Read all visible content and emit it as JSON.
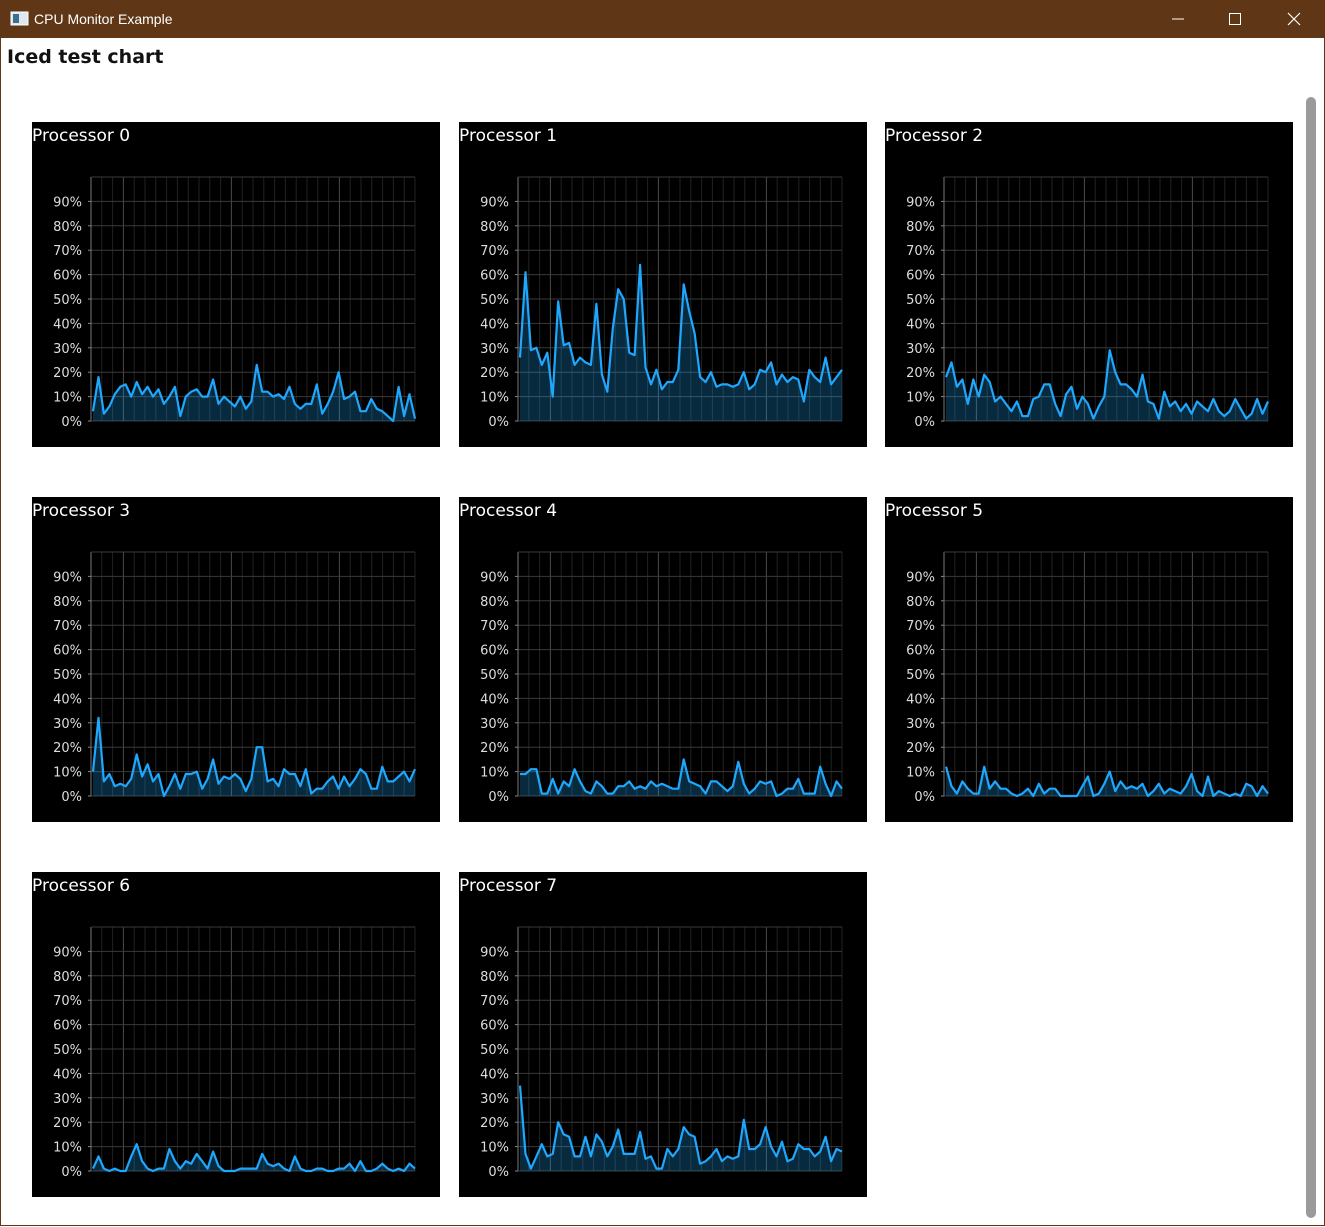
{
  "window": {
    "title": "CPU Monitor Example"
  },
  "header": {
    "title": "Iced test chart"
  },
  "chart_data": [
    {
      "type": "line",
      "title": "Processor 0",
      "color": "#1ea7fd",
      "grid": true,
      "ylim": [
        0,
        100
      ],
      "yticks": [
        {
          "value": 0,
          "label": "0%"
        },
        {
          "value": 10,
          "label": "10%"
        },
        {
          "value": 20,
          "label": "20%"
        },
        {
          "value": 30,
          "label": "30%"
        },
        {
          "value": 40,
          "label": "40%"
        },
        {
          "value": 50,
          "label": "50%"
        },
        {
          "value": 60,
          "label": "60%"
        },
        {
          "value": 70,
          "label": "70%"
        },
        {
          "value": 80,
          "label": "80%"
        },
        {
          "value": 90,
          "label": "90%"
        }
      ],
      "values": [
        4,
        18,
        3,
        6,
        11,
        14,
        15,
        10,
        16,
        11,
        14,
        10,
        13,
        7,
        10,
        14,
        2,
        10,
        12,
        13,
        10,
        10,
        17,
        7,
        10,
        8,
        6,
        10,
        5,
        8,
        23,
        12,
        12,
        10,
        11,
        9,
        14,
        7,
        5,
        7,
        7,
        15,
        3,
        7,
        12,
        20,
        9,
        10,
        12,
        4,
        4,
        9,
        5,
        4,
        2,
        0,
        14,
        2,
        11,
        1
      ]
    },
    {
      "type": "line",
      "title": "Processor 1",
      "color": "#1ea7fd",
      "grid": true,
      "ylim": [
        0,
        100
      ],
      "yticks": [
        {
          "value": 0,
          "label": "0%"
        },
        {
          "value": 10,
          "label": "10%"
        },
        {
          "value": 20,
          "label": "20%"
        },
        {
          "value": 30,
          "label": "30%"
        },
        {
          "value": 40,
          "label": "40%"
        },
        {
          "value": 50,
          "label": "50%"
        },
        {
          "value": 60,
          "label": "60%"
        },
        {
          "value": 70,
          "label": "70%"
        },
        {
          "value": 80,
          "label": "80%"
        },
        {
          "value": 90,
          "label": "90%"
        }
      ],
      "values": [
        26,
        61,
        29,
        30,
        23,
        28,
        10,
        49,
        31,
        32,
        23,
        26,
        24,
        23,
        48,
        19,
        12,
        38,
        54,
        50,
        28,
        27,
        64,
        22,
        15,
        21,
        13,
        16,
        16,
        21,
        56,
        45,
        36,
        18,
        16,
        20,
        14,
        15,
        15,
        14,
        15,
        20,
        13,
        15,
        21,
        20,
        24,
        15,
        19,
        16,
        18,
        17,
        8,
        21,
        18,
        16,
        26,
        15,
        18,
        21
      ]
    },
    {
      "type": "line",
      "title": "Processor 2",
      "color": "#1ea7fd",
      "grid": true,
      "ylim": [
        0,
        100
      ],
      "yticks": [
        {
          "value": 0,
          "label": "0%"
        },
        {
          "value": 10,
          "label": "10%"
        },
        {
          "value": 20,
          "label": "20%"
        },
        {
          "value": 30,
          "label": "30%"
        },
        {
          "value": 40,
          "label": "40%"
        },
        {
          "value": 50,
          "label": "50%"
        },
        {
          "value": 60,
          "label": "60%"
        },
        {
          "value": 70,
          "label": "70%"
        },
        {
          "value": 80,
          "label": "80%"
        },
        {
          "value": 90,
          "label": "90%"
        }
      ],
      "values": [
        18,
        24,
        14,
        17,
        7,
        17,
        10,
        19,
        16,
        8,
        10,
        7,
        4,
        8,
        2,
        2,
        9,
        10,
        15,
        15,
        7,
        2,
        11,
        14,
        5,
        10,
        7,
        1,
        6,
        10,
        29,
        20,
        15,
        15,
        13,
        10,
        19,
        8,
        7,
        1,
        12,
        6,
        8,
        4,
        7,
        3,
        8,
        6,
        4,
        9,
        4,
        2,
        4,
        9,
        5,
        1,
        3,
        9,
        3,
        8
      ]
    },
    {
      "type": "line",
      "title": "Processor 3",
      "color": "#1ea7fd",
      "grid": true,
      "ylim": [
        0,
        100
      ],
      "yticks": [
        {
          "value": 0,
          "label": "0%"
        },
        {
          "value": 10,
          "label": "10%"
        },
        {
          "value": 20,
          "label": "20%"
        },
        {
          "value": 30,
          "label": "30%"
        },
        {
          "value": 40,
          "label": "40%"
        },
        {
          "value": 50,
          "label": "50%"
        },
        {
          "value": 60,
          "label": "60%"
        },
        {
          "value": 70,
          "label": "70%"
        },
        {
          "value": 80,
          "label": "80%"
        },
        {
          "value": 90,
          "label": "90%"
        }
      ],
      "values": [
        10,
        32,
        6,
        9,
        4,
        5,
        4,
        7,
        17,
        8,
        13,
        6,
        9,
        0,
        4,
        9,
        3,
        9,
        9,
        10,
        3,
        7,
        15,
        5,
        8,
        7,
        9,
        7,
        2,
        7,
        20,
        20,
        6,
        7,
        4,
        11,
        9,
        9,
        4,
        11,
        1,
        3,
        3,
        6,
        8,
        3,
        8,
        4,
        7,
        11,
        9,
        3,
        3,
        12,
        6,
        6,
        8,
        10,
        6,
        11
      ]
    },
    {
      "type": "line",
      "title": "Processor 4",
      "color": "#1ea7fd",
      "grid": true,
      "ylim": [
        0,
        100
      ],
      "yticks": [
        {
          "value": 0,
          "label": "0%"
        },
        {
          "value": 10,
          "label": "10%"
        },
        {
          "value": 20,
          "label": "20%"
        },
        {
          "value": 30,
          "label": "30%"
        },
        {
          "value": 40,
          "label": "40%"
        },
        {
          "value": 50,
          "label": "50%"
        },
        {
          "value": 60,
          "label": "60%"
        },
        {
          "value": 70,
          "label": "70%"
        },
        {
          "value": 80,
          "label": "80%"
        },
        {
          "value": 90,
          "label": "90%"
        }
      ],
      "values": [
        9,
        9,
        11,
        11,
        1,
        1,
        7,
        1,
        6,
        4,
        11,
        6,
        2,
        1,
        6,
        4,
        1,
        1,
        4,
        4,
        6,
        3,
        4,
        3,
        6,
        4,
        5,
        4,
        3,
        3,
        15,
        6,
        5,
        4,
        1,
        6,
        6,
        4,
        2,
        4,
        14,
        5,
        1,
        3,
        6,
        5,
        6,
        0,
        1,
        3,
        3,
        7,
        1,
        1,
        1,
        12,
        5,
        0,
        6,
        3
      ]
    },
    {
      "type": "line",
      "title": "Processor 5",
      "color": "#1ea7fd",
      "grid": true,
      "ylim": [
        0,
        100
      ],
      "yticks": [
        {
          "value": 0,
          "label": "0%"
        },
        {
          "value": 10,
          "label": "10%"
        },
        {
          "value": 20,
          "label": "20%"
        },
        {
          "value": 30,
          "label": "30%"
        },
        {
          "value": 40,
          "label": "40%"
        },
        {
          "value": 50,
          "label": "50%"
        },
        {
          "value": 60,
          "label": "60%"
        },
        {
          "value": 70,
          "label": "70%"
        },
        {
          "value": 80,
          "label": "80%"
        },
        {
          "value": 90,
          "label": "90%"
        }
      ],
      "values": [
        12,
        4,
        1,
        6,
        3,
        1,
        1,
        12,
        3,
        6,
        3,
        3,
        1,
        0,
        1,
        3,
        0,
        5,
        1,
        3,
        3,
        0,
        0,
        0,
        0,
        4,
        8,
        0,
        1,
        5,
        10,
        2,
        6,
        3,
        4,
        3,
        5,
        0,
        2,
        5,
        1,
        3,
        2,
        1,
        4,
        9,
        2,
        0,
        8,
        0,
        2,
        1,
        0,
        1,
        0,
        5,
        4,
        0,
        4,
        1
      ]
    },
    {
      "type": "line",
      "title": "Processor 6",
      "color": "#1ea7fd",
      "grid": true,
      "ylim": [
        0,
        100
      ],
      "yticks": [
        {
          "value": 0,
          "label": "0%"
        },
        {
          "value": 10,
          "label": "10%"
        },
        {
          "value": 20,
          "label": "20%"
        },
        {
          "value": 30,
          "label": "30%"
        },
        {
          "value": 40,
          "label": "40%"
        },
        {
          "value": 50,
          "label": "50%"
        },
        {
          "value": 60,
          "label": "60%"
        },
        {
          "value": 70,
          "label": "70%"
        },
        {
          "value": 80,
          "label": "80%"
        },
        {
          "value": 90,
          "label": "90%"
        }
      ],
      "values": [
        1,
        6,
        1,
        0,
        1,
        0,
        0,
        6,
        11,
        4,
        1,
        0,
        1,
        1,
        9,
        4,
        1,
        4,
        3,
        7,
        4,
        1,
        8,
        2,
        0,
        0,
        0,
        1,
        1,
        1,
        1,
        7,
        3,
        2,
        3,
        1,
        0,
        6,
        1,
        0,
        0,
        1,
        1,
        0,
        0,
        1,
        1,
        3,
        0,
        4,
        0,
        0,
        1,
        3,
        1,
        0,
        1,
        0,
        3,
        1
      ]
    },
    {
      "type": "line",
      "title": "Processor 7",
      "color": "#1ea7fd",
      "grid": true,
      "ylim": [
        0,
        100
      ],
      "yticks": [
        {
          "value": 0,
          "label": "0%"
        },
        {
          "value": 10,
          "label": "10%"
        },
        {
          "value": 20,
          "label": "20%"
        },
        {
          "value": 30,
          "label": "30%"
        },
        {
          "value": 40,
          "label": "40%"
        },
        {
          "value": 50,
          "label": "50%"
        },
        {
          "value": 60,
          "label": "60%"
        },
        {
          "value": 70,
          "label": "70%"
        },
        {
          "value": 80,
          "label": "80%"
        },
        {
          "value": 90,
          "label": "90%"
        }
      ],
      "values": [
        35,
        7,
        1,
        6,
        11,
        6,
        7,
        20,
        15,
        14,
        6,
        6,
        14,
        6,
        15,
        12,
        6,
        10,
        17,
        7,
        7,
        7,
        16,
        5,
        6,
        1,
        1,
        9,
        6,
        9,
        18,
        15,
        14,
        3,
        4,
        6,
        9,
        4,
        6,
        5,
        6,
        21,
        9,
        9,
        11,
        18,
        10,
        6,
        12,
        4,
        5,
        11,
        9,
        9,
        6,
        8,
        14,
        4,
        9,
        8
      ]
    }
  ]
}
